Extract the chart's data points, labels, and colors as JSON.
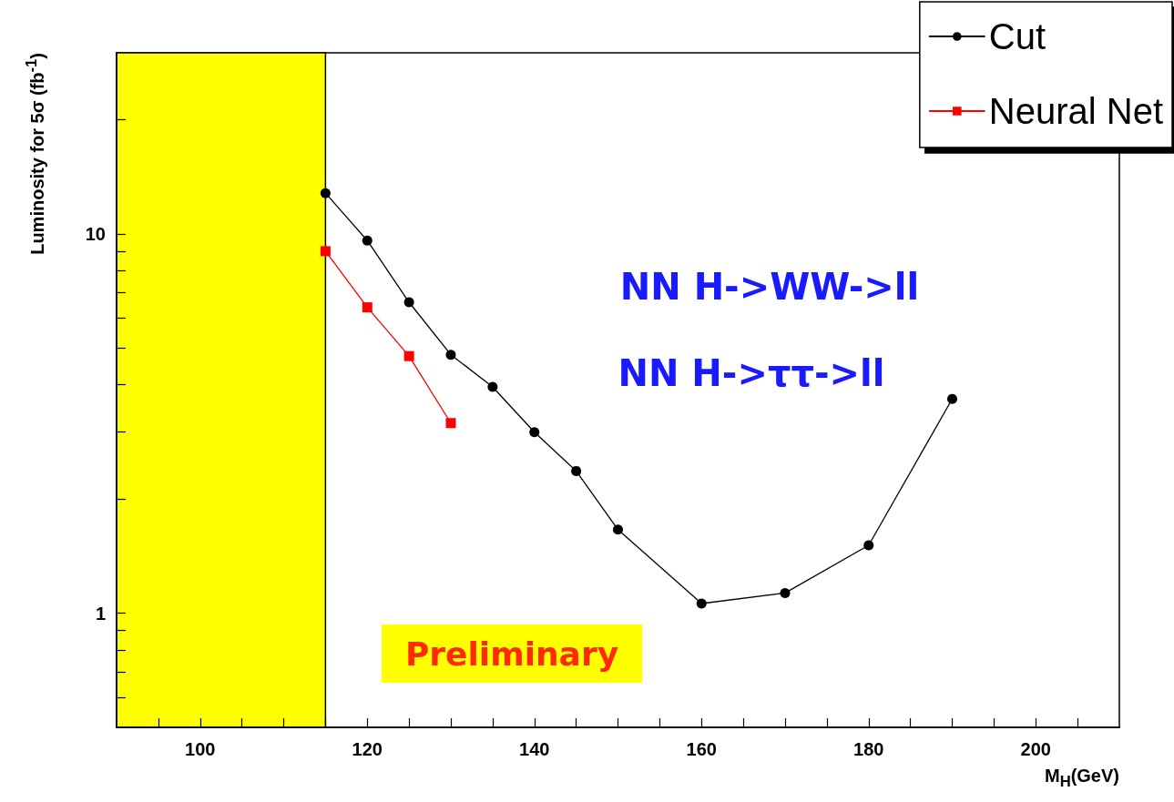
{
  "chart_data": {
    "type": "line",
    "xlabel": "M$_{H}$(GeV)",
    "ylabel": "Luminosity for 5σ (fb$^{-1}$)",
    "series": [
      {
        "name": "Cut",
        "color": "#000000",
        "marker": "circle",
        "x": [
          115,
          120,
          125,
          130,
          135,
          140,
          145,
          150,
          160,
          170,
          180,
          190
        ],
        "values": [
          12.8,
          9.6,
          6.6,
          4.8,
          3.95,
          3.0,
          2.37,
          1.66,
          1.06,
          1.13,
          1.51,
          3.67
        ]
      },
      {
        "name": "Neural Net",
        "color": "#ff0000",
        "marker": "square",
        "x": [
          115,
          120,
          125,
          130
        ],
        "values": [
          9.0,
          6.4,
          4.76,
          3.17
        ]
      }
    ],
    "xlim": [
      90,
      210
    ],
    "xticks": [
      {
        "value": 95,
        "label": null
      },
      100,
      {
        "value": 105,
        "label": null
      },
      {
        "value": 110,
        "label": null
      },
      {
        "value": 115,
        "label": null
      },
      120,
      {
        "value": 125,
        "label": null
      },
      {
        "value": 130,
        "label": null
      },
      {
        "value": 135,
        "label": null
      },
      140,
      {
        "value": 145,
        "label": null
      },
      {
        "value": 150,
        "label": null
      },
      {
        "value": 155,
        "label": null
      },
      160,
      {
        "value": 165,
        "label": null
      },
      {
        "value": 170,
        "label": null
      },
      {
        "value": 175,
        "label": null
      },
      180,
      {
        "value": 185,
        "label": null
      },
      {
        "value": 190,
        "label": null
      },
      {
        "value": 195,
        "label": null
      },
      200,
      {
        "value": 205,
        "label": null
      }
    ],
    "ylim": [
      0.5,
      30
    ],
    "yticks": [
      {
        "value": 0.6,
        "label": null
      },
      {
        "value": 0.7,
        "label": null
      },
      {
        "value": 0.8,
        "label": null
      },
      {
        "value": 0.9,
        "label": null
      },
      1,
      {
        "value": 2,
        "label": null
      },
      {
        "value": 3,
        "label": null
      },
      {
        "value": 4,
        "label": null
      },
      {
        "value": 5,
        "label": null
      },
      {
        "value": 6,
        "label": null
      },
      {
        "value": 7,
        "label": null
      },
      {
        "value": 8,
        "label": null
      },
      {
        "value": 9,
        "label": null
      },
      10,
      {
        "value": 20,
        "label": null
      }
    ],
    "log": "y",
    "grid": false,
    "legend": "top right",
    "bands": [
      {
        "axis": "x",
        "from": 90,
        "to": 115,
        "color": "#ffff00"
      }
    ],
    "annotations": [
      "NN H->WW->ll",
      "NN H->ττ->ll",
      "Preliminary"
    ]
  }
}
